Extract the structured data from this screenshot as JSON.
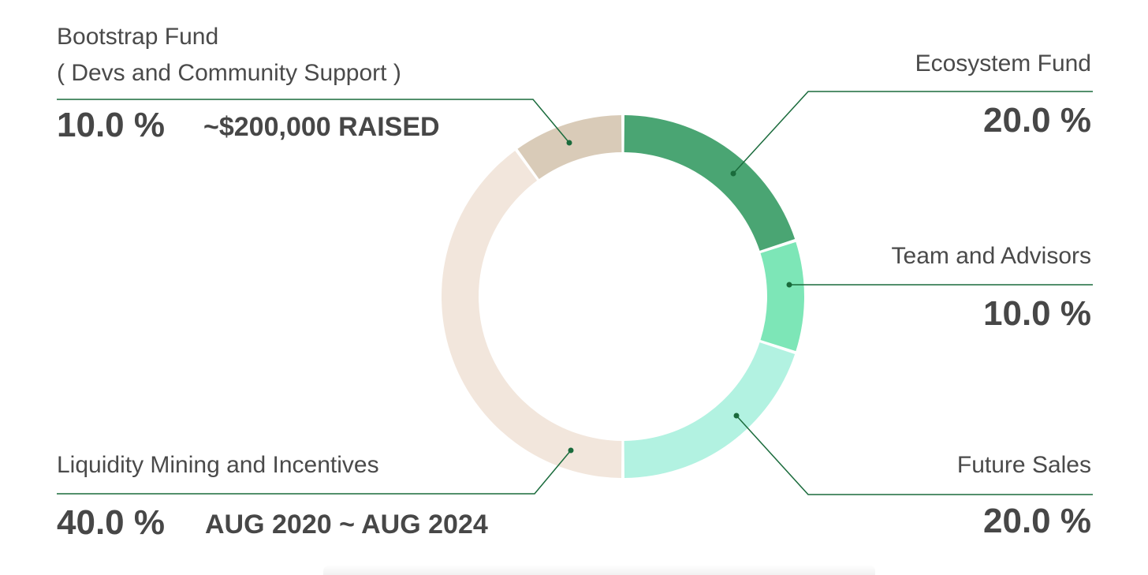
{
  "chart_data": {
    "type": "pie",
    "donut": true,
    "slices": [
      {
        "label": "Ecosystem Fund",
        "value": 20.0,
        "value_label": "20.0 %",
        "color": "#4aa573"
      },
      {
        "label": "Team and Advisors",
        "value": 10.0,
        "value_label": "10.0 %",
        "color": "#7de6b7"
      },
      {
        "label": "Future Sales",
        "value": 20.0,
        "value_label": "20.0 %",
        "color": "#b2f2e1"
      },
      {
        "label": "Liquidity Mining and Incentives",
        "value": 40.0,
        "value_label": "40.0 %",
        "color": "#f2e6dc",
        "note": "AUG 2020 ~ AUG 2024"
      },
      {
        "label": "Bootstrap Fund",
        "sublabel": "( Devs and Community Support )",
        "value": 10.0,
        "value_label": "10.0 %",
        "color": "#d9cbb8",
        "note": "~$200,000 RAISED"
      }
    ],
    "leader_color": "#1a6b3c"
  }
}
